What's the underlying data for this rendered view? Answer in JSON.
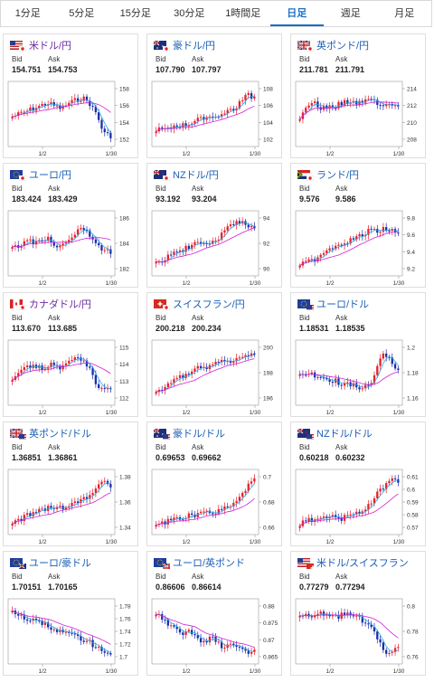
{
  "tabs": [
    {
      "label": "1分足",
      "active": false
    },
    {
      "label": "5分足",
      "active": false
    },
    {
      "label": "15分足",
      "active": false
    },
    {
      "label": "30分足",
      "active": false
    },
    {
      "label": "1時間足",
      "active": false
    },
    {
      "label": "日足",
      "active": true
    },
    {
      "label": "週足",
      "active": false
    },
    {
      "label": "月足",
      "active": false
    }
  ],
  "labels": {
    "bid": "Bid",
    "ask": "Ask"
  },
  "colors": {
    "up": "#e8202a",
    "down": "#1c2ea8",
    "ma_short": "#29a8e8",
    "ma_long": "#d020d8",
    "accent": "#1a6fc4"
  },
  "cards": [
    {
      "pair": "米ドル/円",
      "purple": true,
      "flag": "us-jp",
      "bid": "154.751",
      "ask": "154.753",
      "chart": {
        "x_labels": [
          "1/2",
          "1/30"
        ],
        "y_ticks": [
          "158",
          "156",
          "154",
          "152"
        ]
      }
    },
    {
      "pair": "豪ドル/円",
      "purple": false,
      "flag": "au-jp",
      "bid": "107.790",
      "ask": "107.797",
      "chart": {
        "x_labels": [
          "1/2",
          "1/30"
        ],
        "y_ticks": [
          "108",
          "106",
          "104",
          "102"
        ]
      }
    },
    {
      "pair": "英ポンド/円",
      "purple": false,
      "flag": "gb-jp",
      "bid": "211.781",
      "ask": "211.791",
      "chart": {
        "x_labels": [
          "1/2",
          "1/30"
        ],
        "y_ticks": [
          "214",
          "212",
          "210",
          "208"
        ]
      }
    },
    {
      "pair": "ユーロ/円",
      "purple": false,
      "flag": "eu-jp",
      "bid": "183.424",
      "ask": "183.429",
      "chart": {
        "x_labels": [
          "1/2",
          "1/30"
        ],
        "y_ticks": [
          "186",
          "184",
          "182"
        ]
      }
    },
    {
      "pair": "NZドル/円",
      "purple": false,
      "flag": "nz-jp",
      "bid": "93.192",
      "ask": "93.204",
      "chart": {
        "x_labels": [
          "1/2",
          "1/30"
        ],
        "y_ticks": [
          "94",
          "92",
          "90"
        ]
      }
    },
    {
      "pair": "ランド/円",
      "purple": false,
      "flag": "za-jp",
      "bid": "9.576",
      "ask": "9.586",
      "chart": {
        "x_labels": [
          "1/2",
          "1/30"
        ],
        "y_ticks": [
          "9.8",
          "9.6",
          "9.4",
          "9.2"
        ]
      }
    },
    {
      "pair": "カナダドル/円",
      "purple": true,
      "flag": "ca-jp",
      "bid": "113.670",
      "ask": "113.685",
      "chart": {
        "x_labels": [
          "1/2",
          "1/30"
        ],
        "y_ticks": [
          "115",
          "114",
          "113",
          "112"
        ]
      }
    },
    {
      "pair": "スイスフラン/円",
      "purple": false,
      "flag": "ch-jp",
      "bid": "200.218",
      "ask": "200.234",
      "chart": {
        "x_labels": [
          "1/2",
          "1/30"
        ],
        "y_ticks": [
          "200",
          "198",
          "196"
        ]
      }
    },
    {
      "pair": "ユーロ/ドル",
      "purple": false,
      "flag": "eu-us",
      "bid": "1.18531",
      "ask": "1.18535",
      "chart": {
        "x_labels": [
          "1/2",
          "1/30"
        ],
        "y_ticks": [
          "1.2",
          "1.18",
          "1.16"
        ]
      }
    },
    {
      "pair": "英ポンド/ドル",
      "purple": false,
      "flag": "gb-us",
      "bid": "1.36851",
      "ask": "1.36861",
      "chart": {
        "x_labels": [
          "1/2",
          "1/30"
        ],
        "y_ticks": [
          "1.38",
          "1.36",
          "1.34"
        ]
      }
    },
    {
      "pair": "豪ドル/ドル",
      "purple": false,
      "flag": "au-us",
      "bid": "0.69653",
      "ask": "0.69662",
      "chart": {
        "x_labels": [
          "1/2",
          "1/30"
        ],
        "y_ticks": [
          "0.7",
          "0.68",
          "0.66"
        ]
      }
    },
    {
      "pair": "NZドル/ドル",
      "purple": false,
      "flag": "nz-us",
      "bid": "0.60218",
      "ask": "0.60232",
      "chart": {
        "x_labels": [
          "1/2",
          "1/30"
        ],
        "y_ticks": [
          "0.61",
          "0.6",
          "0.59",
          "0.58",
          "0.57"
        ]
      }
    },
    {
      "pair": "ユーロ/豪ドル",
      "purple": false,
      "flag": "eu-au",
      "bid": "1.70151",
      "ask": "1.70165",
      "chart": {
        "x_labels": [
          "1/2",
          "1/30"
        ],
        "y_ticks": [
          "1.78",
          "1.76",
          "1.74",
          "1.72",
          "1.7"
        ]
      }
    },
    {
      "pair": "ユーロ/英ポンド",
      "purple": false,
      "flag": "eu-gb",
      "bid": "0.86606",
      "ask": "0.86614",
      "chart": {
        "x_labels": [
          "1/2",
          "1/30"
        ],
        "y_ticks": [
          "0.88",
          "0.875",
          "0.87",
          "0.865"
        ]
      }
    },
    {
      "pair": "米ドル/スイスフラン",
      "purple": false,
      "flag": "us-ch",
      "bid": "0.77279",
      "ask": "0.77294",
      "chart": {
        "x_labels": [
          "1/2",
          "1/30"
        ],
        "y_ticks": [
          "0.8",
          "0.78",
          "0.76"
        ]
      }
    }
  ]
}
